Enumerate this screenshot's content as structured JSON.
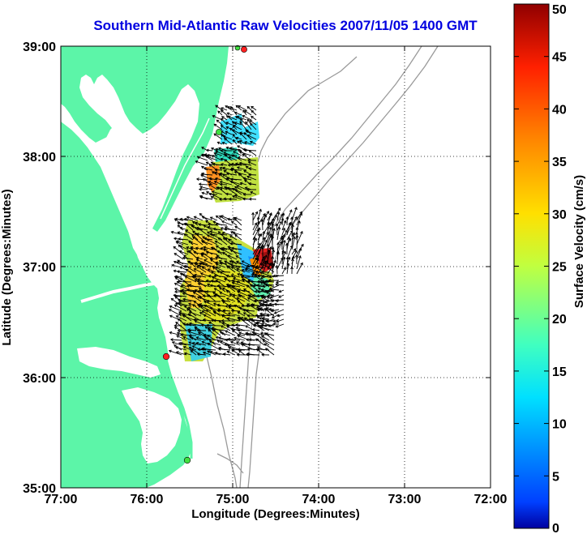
{
  "title": "Southern Mid-Atlantic Raw Velocities 2007/11/05 1400 GMT",
  "map": {
    "x_axis": {
      "label": "Longitude (Degrees:Minutes)",
      "ticks": [
        "77:00",
        "76:00",
        "75:00",
        "74:00",
        "73:00",
        "72:00"
      ]
    },
    "y_axis": {
      "label": "Latitude (Degrees:Minutes)",
      "ticks": [
        "39:00",
        "38:00",
        "37:00",
        "36:00",
        "35:00"
      ]
    },
    "grid": "dotted",
    "land_color": "#5cf5a8",
    "bathymetry_color": "#9a9a9a",
    "arrow_color": "#000000",
    "stations": [
      {
        "color": "#ff2020"
      },
      {
        "color": "#40e040"
      },
      {
        "color": "#40e040"
      },
      {
        "color": "#ff2020"
      },
      {
        "color": "#40e040"
      }
    ]
  },
  "colorbar": {
    "label": "Surface Velocity (cm/s)",
    "ticks": [
      "50",
      "45",
      "40",
      "35",
      "30",
      "25",
      "20",
      "15",
      "10",
      "5",
      "0"
    ],
    "min": 0,
    "max": 50,
    "colormap": "jet"
  }
}
